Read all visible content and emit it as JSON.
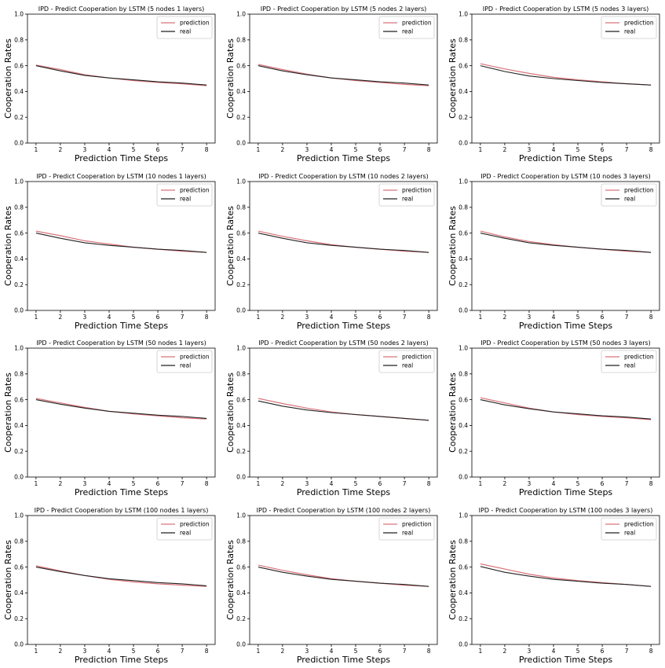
{
  "colors": {
    "prediction": "#d9737a",
    "real": "#222222",
    "axis": "#000000"
  },
  "chart_data": [
    {
      "type": "line",
      "title": "IPD - Predict Cooperation by LSTM (5 nodes 1 layers)",
      "xlabel": "Prediction Time Steps",
      "ylabel": "Cooperation Rates",
      "x": [
        1,
        2,
        3,
        4,
        5,
        6,
        7,
        8
      ],
      "xticks": [
        "1",
        "2",
        "3",
        "4",
        "5",
        "6",
        "7",
        "8"
      ],
      "ylim": [
        0,
        1.0
      ],
      "yticks": [
        "0.0",
        "0.2",
        "0.4",
        "0.6",
        "0.8",
        "1.0"
      ],
      "legend": "top-right",
      "series": [
        {
          "name": "prediction",
          "values": [
            0.605,
            0.57,
            0.53,
            0.505,
            0.485,
            0.47,
            0.46,
            0.445
          ]
        },
        {
          "name": "real",
          "values": [
            0.6,
            0.56,
            0.525,
            0.505,
            0.49,
            0.475,
            0.465,
            0.45
          ]
        }
      ]
    },
    {
      "type": "line",
      "title": "IPD - Predict Cooperation by LSTM (5 nodes 2 layers)",
      "xlabel": "Prediction Time Steps",
      "ylabel": "Cooperation Rates",
      "x": [
        1,
        2,
        3,
        4,
        5,
        6,
        7,
        8
      ],
      "xticks": [
        "1",
        "2",
        "3",
        "4",
        "5",
        "6",
        "7",
        "8"
      ],
      "ylim": [
        0,
        1.0
      ],
      "yticks": [
        "0.0",
        "0.2",
        "0.4",
        "0.6",
        "0.8",
        "1.0"
      ],
      "legend": "top-right",
      "series": [
        {
          "name": "prediction",
          "values": [
            0.61,
            0.57,
            0.535,
            0.505,
            0.485,
            0.47,
            0.455,
            0.445
          ]
        },
        {
          "name": "real",
          "values": [
            0.6,
            0.56,
            0.53,
            0.505,
            0.49,
            0.475,
            0.465,
            0.45
          ]
        }
      ]
    },
    {
      "type": "line",
      "title": "IPD - Predict Cooperation by LSTM (5 nodes 3 layers)",
      "xlabel": "Prediction Time Steps",
      "ylabel": "Cooperation Rates",
      "x": [
        1,
        2,
        3,
        4,
        5,
        6,
        7,
        8
      ],
      "xticks": [
        "1",
        "2",
        "3",
        "4",
        "5",
        "6",
        "7",
        "8"
      ],
      "ylim": [
        0,
        1.0
      ],
      "yticks": [
        "0.0",
        "0.2",
        "0.4",
        "0.6",
        "0.8",
        "1.0"
      ],
      "legend": "top-right",
      "series": [
        {
          "name": "prediction",
          "values": [
            0.615,
            0.575,
            0.54,
            0.51,
            0.49,
            0.475,
            0.46,
            0.45
          ]
        },
        {
          "name": "real",
          "values": [
            0.6,
            0.555,
            0.52,
            0.5,
            0.485,
            0.47,
            0.46,
            0.45
          ]
        }
      ]
    },
    {
      "type": "line",
      "title": "IPD - Predict Cooperation by LSTM (10 nodes 1 layers)",
      "xlabel": "Prediction Time Steps",
      "ylabel": "Cooperation Rates",
      "x": [
        1,
        2,
        3,
        4,
        5,
        6,
        7,
        8
      ],
      "xticks": [
        "1",
        "2",
        "3",
        "4",
        "5",
        "6",
        "7",
        "8"
      ],
      "ylim": [
        0,
        1.0
      ],
      "yticks": [
        "0.0",
        "0.2",
        "0.4",
        "0.6",
        "0.8",
        "1.0"
      ],
      "legend": "top-right",
      "series": [
        {
          "name": "prediction",
          "values": [
            0.615,
            0.58,
            0.54,
            0.515,
            0.49,
            0.475,
            0.46,
            0.45
          ]
        },
        {
          "name": "real",
          "values": [
            0.6,
            0.56,
            0.525,
            0.505,
            0.49,
            0.475,
            0.465,
            0.45
          ]
        }
      ]
    },
    {
      "type": "line",
      "title": "IPD - Predict Cooperation by LSTM (10 nodes 2 layers)",
      "xlabel": "Prediction Time Steps",
      "ylabel": "Cooperation Rates",
      "x": [
        1,
        2,
        3,
        4,
        5,
        6,
        7,
        8
      ],
      "xticks": [
        "1",
        "2",
        "3",
        "4",
        "5",
        "6",
        "7",
        "8"
      ],
      "ylim": [
        0,
        1.0
      ],
      "yticks": [
        "0.0",
        "0.2",
        "0.4",
        "0.6",
        "0.8",
        "1.0"
      ],
      "legend": "top-right",
      "series": [
        {
          "name": "prediction",
          "values": [
            0.615,
            0.575,
            0.54,
            0.51,
            0.49,
            0.475,
            0.46,
            0.45
          ]
        },
        {
          "name": "real",
          "values": [
            0.6,
            0.56,
            0.525,
            0.505,
            0.49,
            0.475,
            0.465,
            0.45
          ]
        }
      ]
    },
    {
      "type": "line",
      "title": "IPD - Predict Cooperation by LSTM (10 nodes 3 layers)",
      "xlabel": "Prediction Time Steps",
      "ylabel": "Cooperation Rates",
      "x": [
        1,
        2,
        3,
        4,
        5,
        6,
        7,
        8
      ],
      "xticks": [
        "1",
        "2",
        "3",
        "4",
        "5",
        "6",
        "7",
        "8"
      ],
      "ylim": [
        0,
        1.0
      ],
      "yticks": [
        "0.0",
        "0.2",
        "0.4",
        "0.6",
        "0.8",
        "1.0"
      ],
      "legend": "top-right",
      "series": [
        {
          "name": "prediction",
          "values": [
            0.615,
            0.57,
            0.535,
            0.51,
            0.49,
            0.475,
            0.46,
            0.45
          ]
        },
        {
          "name": "real",
          "values": [
            0.6,
            0.56,
            0.525,
            0.505,
            0.49,
            0.475,
            0.465,
            0.45
          ]
        }
      ]
    },
    {
      "type": "line",
      "title": "IPD - Predict Cooperation by LSTM (50 nodes 1 layers)",
      "xlabel": "Prediction Time Steps",
      "ylabel": "Cooperation Rates",
      "x": [
        1,
        2,
        3,
        4,
        5,
        6,
        7,
        8
      ],
      "xticks": [
        "1",
        "2",
        "3",
        "4",
        "5",
        "6",
        "7",
        "8"
      ],
      "ylim": [
        0,
        1.0
      ],
      "yticks": [
        "0.0",
        "0.2",
        "0.4",
        "0.6",
        "0.8",
        "1.0"
      ],
      "legend": "top-right",
      "series": [
        {
          "name": "prediction",
          "values": [
            0.61,
            0.575,
            0.54,
            0.51,
            0.49,
            0.475,
            0.46,
            0.45
          ]
        },
        {
          "name": "real",
          "values": [
            0.6,
            0.565,
            0.535,
            0.51,
            0.495,
            0.48,
            0.47,
            0.455
          ]
        }
      ]
    },
    {
      "type": "line",
      "title": "IPD - Predict Cooperation by LSTM (50 nodes 2 layers)",
      "xlabel": "Prediction Time Steps",
      "ylabel": "Cooperation Rates",
      "x": [
        1,
        2,
        3,
        4,
        5,
        6,
        7,
        8
      ],
      "xticks": [
        "1",
        "2",
        "3",
        "4",
        "5",
        "6",
        "7",
        "8"
      ],
      "ylim": [
        0,
        1.0
      ],
      "yticks": [
        "0.0",
        "0.2",
        "0.4",
        "0.6",
        "0.8",
        "1.0"
      ],
      "legend": "top-right",
      "series": [
        {
          "name": "prediction",
          "values": [
            0.61,
            0.57,
            0.535,
            0.505,
            0.485,
            0.47,
            0.455,
            0.44
          ]
        },
        {
          "name": "real",
          "values": [
            0.59,
            0.55,
            0.52,
            0.5,
            0.485,
            0.47,
            0.455,
            0.44
          ]
        }
      ]
    },
    {
      "type": "line",
      "title": "IPD - Predict Cooperation by LSTM (50 nodes 3 layers)",
      "xlabel": "Prediction Time Steps",
      "ylabel": "Cooperation Rates",
      "x": [
        1,
        2,
        3,
        4,
        5,
        6,
        7,
        8
      ],
      "xticks": [
        "1",
        "2",
        "3",
        "4",
        "5",
        "6",
        "7",
        "8"
      ],
      "ylim": [
        0,
        1.0
      ],
      "yticks": [
        "0.0",
        "0.2",
        "0.4",
        "0.6",
        "0.8",
        "1.0"
      ],
      "legend": "top-right",
      "series": [
        {
          "name": "prediction",
          "values": [
            0.615,
            0.575,
            0.535,
            0.505,
            0.485,
            0.47,
            0.46,
            0.445
          ]
        },
        {
          "name": "real",
          "values": [
            0.6,
            0.56,
            0.53,
            0.505,
            0.49,
            0.475,
            0.465,
            0.45
          ]
        }
      ]
    },
    {
      "type": "line",
      "title": "IPD - Predict Cooperation by LSTM (100 nodes 1 layers)",
      "xlabel": "Prediction Time Steps",
      "ylabel": "Cooperation Rates",
      "x": [
        1,
        2,
        3,
        4,
        5,
        6,
        7,
        8
      ],
      "xticks": [
        "1",
        "2",
        "3",
        "4",
        "5",
        "6",
        "7",
        "8"
      ],
      "ylim": [
        0,
        1.0
      ],
      "yticks": [
        "0.0",
        "0.2",
        "0.4",
        "0.6",
        "0.8",
        "1.0"
      ],
      "legend": "top-right",
      "series": [
        {
          "name": "prediction",
          "values": [
            0.61,
            0.57,
            0.535,
            0.505,
            0.485,
            0.47,
            0.46,
            0.45
          ]
        },
        {
          "name": "real",
          "values": [
            0.6,
            0.565,
            0.535,
            0.51,
            0.495,
            0.48,
            0.47,
            0.455
          ]
        }
      ]
    },
    {
      "type": "line",
      "title": "IPD - Predict Cooperation by LSTM (100 nodes 2 layers)",
      "xlabel": "Prediction Time Steps",
      "ylabel": "Cooperation Rates",
      "x": [
        1,
        2,
        3,
        4,
        5,
        6,
        7,
        8
      ],
      "xticks": [
        "1",
        "2",
        "3",
        "4",
        "5",
        "6",
        "7",
        "8"
      ],
      "ylim": [
        0,
        1.0
      ],
      "yticks": [
        "0.0",
        "0.2",
        "0.4",
        "0.6",
        "0.8",
        "1.0"
      ],
      "legend": "top-right",
      "series": [
        {
          "name": "prediction",
          "values": [
            0.615,
            0.575,
            0.54,
            0.51,
            0.49,
            0.475,
            0.46,
            0.45
          ]
        },
        {
          "name": "real",
          "values": [
            0.6,
            0.56,
            0.53,
            0.505,
            0.49,
            0.475,
            0.465,
            0.45
          ]
        }
      ]
    },
    {
      "type": "line",
      "title": "IPD - Predict Cooperation by LSTM (100 nodes 3 layers)",
      "xlabel": "Prediction Time Steps",
      "ylabel": "Cooperation Rates",
      "x": [
        1,
        2,
        3,
        4,
        5,
        6,
        7,
        8
      ],
      "xticks": [
        "1",
        "2",
        "3",
        "4",
        "5",
        "6",
        "7",
        "8"
      ],
      "ylim": [
        0,
        1.0
      ],
      "yticks": [
        "0.0",
        "0.2",
        "0.4",
        "0.6",
        "0.8",
        "1.0"
      ],
      "legend": "top-right",
      "series": [
        {
          "name": "prediction",
          "values": [
            0.625,
            0.585,
            0.545,
            0.515,
            0.495,
            0.48,
            0.465,
            0.45
          ]
        },
        {
          "name": "real",
          "values": [
            0.605,
            0.56,
            0.53,
            0.505,
            0.49,
            0.475,
            0.465,
            0.45
          ]
        }
      ]
    }
  ]
}
